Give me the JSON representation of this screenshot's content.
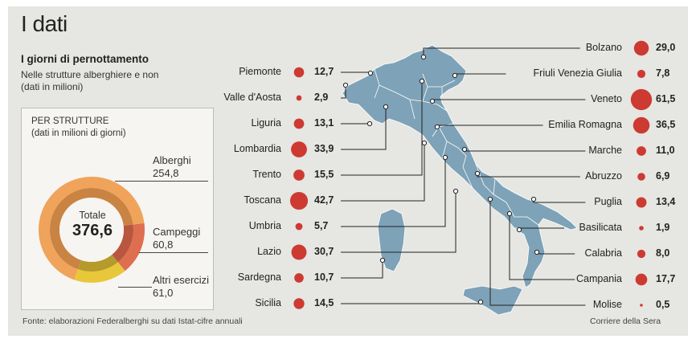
{
  "header": {
    "title": "I dati",
    "subtitle": "I giorni di pernottamento",
    "desc_line1": "Nelle strutture alberghiere e non",
    "desc_line2": "(dati in milioni)"
  },
  "box": {
    "title": "PER STRUTTURE",
    "subtitle": "(dati in milioni di giorni)",
    "total_label": "Totale",
    "total_value": "376,6",
    "segments": [
      {
        "label": "Alberghi",
        "value": "254,8",
        "num": 254.8,
        "color": "#f0a35a",
        "inner": "#c98343"
      },
      {
        "label": "Campeggi",
        "value": "60,8",
        "num": 60.8,
        "color": "#dd6e50",
        "inner": "#b8563f"
      },
      {
        "label": "Altri esercizi",
        "value": "61,0",
        "num": 61.0,
        "color": "#e8c83a",
        "inner": "#b59a2c"
      }
    ]
  },
  "regions_left": [
    {
      "name": "Piemonte",
      "value": "12,7",
      "num": 12.7
    },
    {
      "name": "Valle d'Aosta",
      "value": "2,9",
      "num": 2.9
    },
    {
      "name": "Liguria",
      "value": "13,1",
      "num": 13.1
    },
    {
      "name": "Lombardia",
      "value": "33,9",
      "num": 33.9
    },
    {
      "name": "Trento",
      "value": "15,5",
      "num": 15.5
    },
    {
      "name": "Toscana",
      "value": "42,7",
      "num": 42.7
    },
    {
      "name": "Umbria",
      "value": "5,7",
      "num": 5.7
    },
    {
      "name": "Lazio",
      "value": "30,7",
      "num": 30.7
    },
    {
      "name": "Sardegna",
      "value": "10,7",
      "num": 10.7
    },
    {
      "name": "Sicilia",
      "value": "14,5",
      "num": 14.5
    }
  ],
  "regions_right": [
    {
      "name": "Bolzano",
      "value": "29,0",
      "num": 29.0
    },
    {
      "name": "Friuli Venezia Giulia",
      "value": "7,8",
      "num": 7.8
    },
    {
      "name": "Veneto",
      "value": "61,5",
      "num": 61.5
    },
    {
      "name": "Emilia Romagna",
      "value": "36,5",
      "num": 36.5
    },
    {
      "name": "Marche",
      "value": "11,0",
      "num": 11.0
    },
    {
      "name": "Abruzzo",
      "value": "6,9",
      "num": 6.9
    },
    {
      "name": "Puglia",
      "value": "13,4",
      "num": 13.4
    },
    {
      "name": "Basilicata",
      "value": "1,9",
      "num": 1.9
    },
    {
      "name": "Calabria",
      "value": "8,0",
      "num": 8.0
    },
    {
      "name": "Campania",
      "value": "17,7",
      "num": 17.7
    },
    {
      "name": "Molise",
      "value": "0,5",
      "num": 0.5
    }
  ],
  "colors": {
    "bubble": "#cc3a32",
    "map": "#7ea2b7",
    "map_border": "#ffffff",
    "background": "#e6e6e2"
  },
  "footer": {
    "source": "Fonte: elaborazioni Federalberghi su dati Istat-cifre annuali",
    "credit": "Corriere della Sera"
  }
}
